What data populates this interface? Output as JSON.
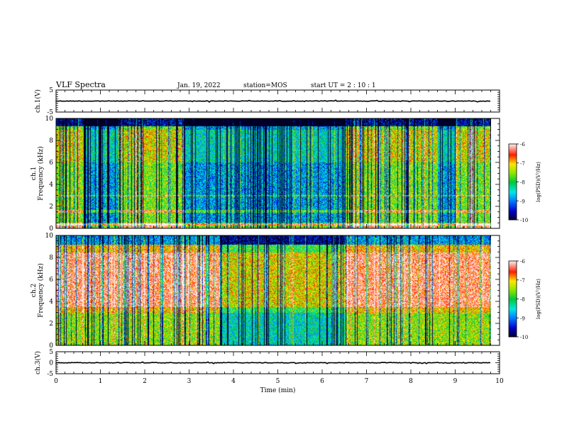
{
  "header": {
    "title": "VLF Spectra",
    "date": "Jan. 19, 2022",
    "station": "station=MOS",
    "start": "start  UT =   2 : 10 : 1"
  },
  "chart_data": [
    {
      "type": "line",
      "name": "ch1-waveform",
      "ylabel": "ch.1(V)",
      "ylim": [
        -5,
        5
      ],
      "yticks": [
        5,
        -5
      ],
      "xlim": [
        0,
        10
      ],
      "series": [
        {
          "x": [
            0,
            9.8
          ],
          "values": [
            0,
            0
          ]
        }
      ]
    },
    {
      "type": "heatmap",
      "name": "ch1-spectrogram",
      "ylabel": "ch.1",
      "ylabel2": "Frequency (kHz)",
      "ylim": [
        0,
        10
      ],
      "yticks": [
        0,
        2,
        4,
        6,
        8,
        10
      ],
      "xlim": [
        0,
        10
      ],
      "data_end": 9.8,
      "colorbar": {
        "label": "log(PSD)(V²/Hz)",
        "range": [
          -10,
          -6
        ],
        "ticks": [
          -6,
          -7,
          -8,
          -9,
          -10
        ]
      }
    },
    {
      "type": "heatmap",
      "name": "ch2-spectrogram",
      "ylabel": "ch.2",
      "ylabel2": "Frequency (kHz)",
      "ylim": [
        0,
        10
      ],
      "yticks": [
        0,
        2,
        4,
        6,
        8,
        10
      ],
      "xlim": [
        0,
        10
      ],
      "data_end": 9.8,
      "colorbar": {
        "label": "log(PSD)(V²/Hz)",
        "range": [
          -10,
          -6
        ],
        "ticks": [
          -6,
          -7,
          -8,
          -9,
          -10
        ]
      }
    },
    {
      "type": "line",
      "name": "ch3-waveform",
      "ylabel": "ch.3(V)",
      "ylim": [
        -5,
        5
      ],
      "yticks": [
        5,
        0,
        -5
      ],
      "xlim": [
        0,
        10
      ],
      "xlabel": "Time (min)",
      "xticks": [
        0,
        1,
        2,
        3,
        4,
        5,
        6,
        7,
        8,
        9,
        10
      ],
      "series": [
        {
          "x": [
            0,
            9.8
          ],
          "values": [
            0,
            0
          ]
        }
      ]
    }
  ]
}
